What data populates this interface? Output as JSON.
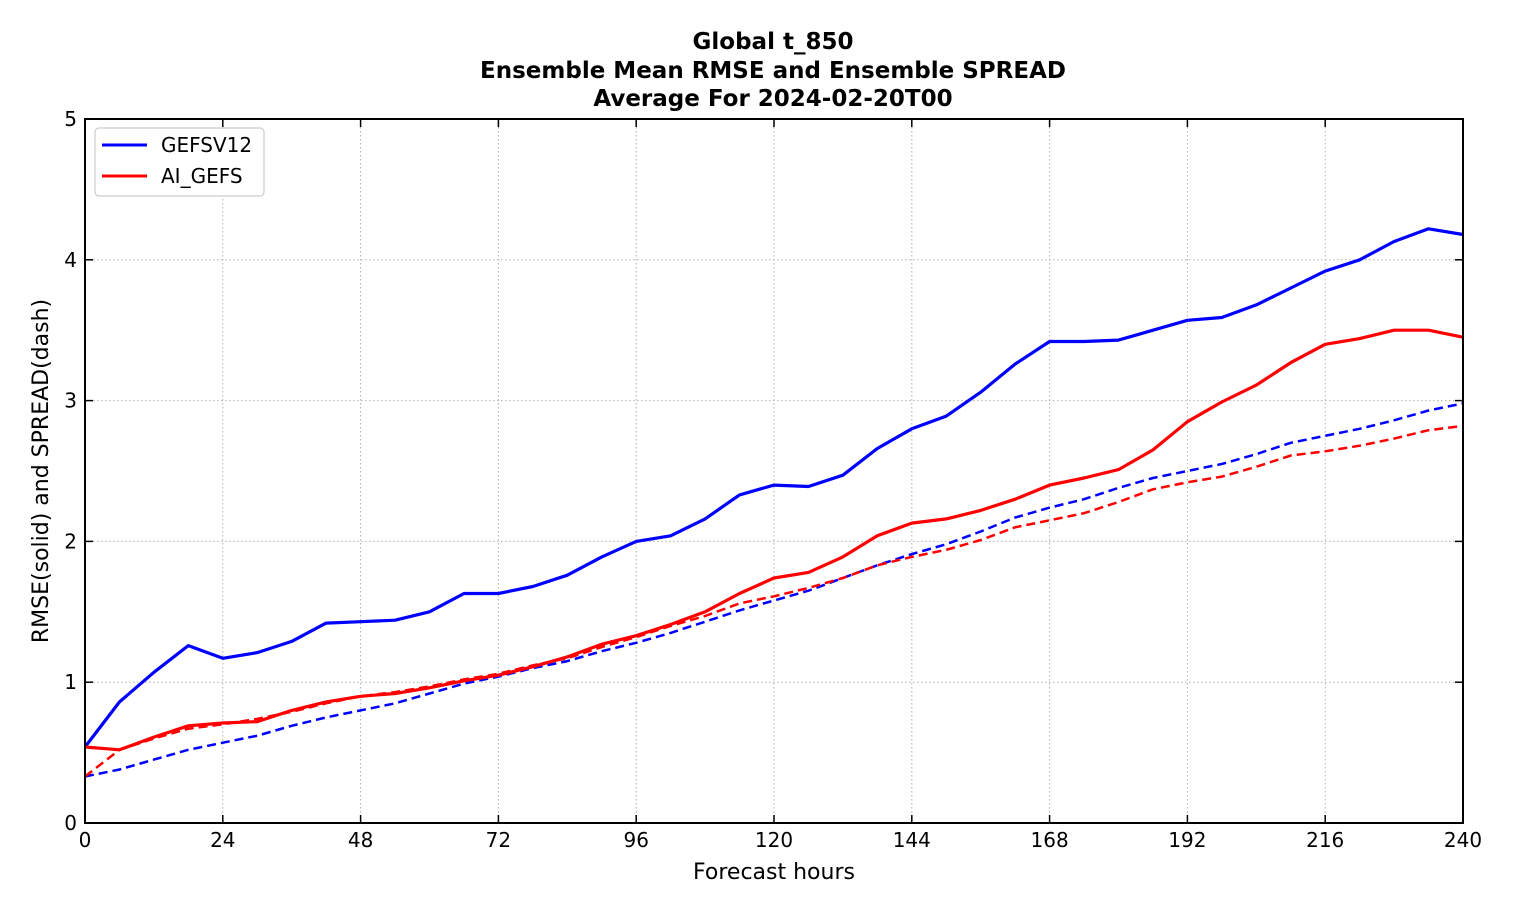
{
  "chart_data": {
    "type": "line",
    "title_lines": [
      "Global t_850",
      "Ensemble Mean RMSE and Ensemble SPREAD",
      "Average For 2024-02-20T00"
    ],
    "xlabel": "Forecast hours",
    "ylabel": "RMSE(solid) and SPREAD(dash)",
    "xlim": [
      0,
      240
    ],
    "ylim": [
      0,
      5
    ],
    "xticks": [
      0,
      24,
      48,
      72,
      96,
      120,
      144,
      168,
      192,
      216,
      240
    ],
    "yticks": [
      0,
      1,
      2,
      3,
      4,
      5
    ],
    "grid": true,
    "legend_position": "top-left",
    "x": [
      0,
      6,
      12,
      18,
      24,
      30,
      36,
      42,
      48,
      54,
      60,
      66,
      72,
      78,
      84,
      90,
      96,
      102,
      108,
      114,
      120,
      126,
      132,
      138,
      144,
      150,
      156,
      162,
      168,
      174,
      180,
      186,
      192,
      198,
      204,
      210,
      216,
      222,
      228,
      234,
      240
    ],
    "series": [
      {
        "name": "GEFSV12",
        "color": "#0000ff",
        "rmse": [
          0.54,
          0.86,
          1.07,
          1.26,
          1.17,
          1.21,
          1.29,
          1.42,
          1.43,
          1.44,
          1.5,
          1.63,
          1.63,
          1.68,
          1.76,
          1.89,
          2.0,
          2.04,
          2.16,
          2.33,
          2.4,
          2.39,
          2.47,
          2.66,
          2.8,
          2.89,
          3.06,
          3.26,
          3.42,
          3.42,
          3.43,
          3.5,
          3.57,
          3.59,
          3.68,
          3.8,
          3.92,
          4.0,
          4.13,
          4.22,
          4.18
        ],
        "spread": [
          0.33,
          0.38,
          0.45,
          0.52,
          0.57,
          0.62,
          0.69,
          0.75,
          0.8,
          0.85,
          0.92,
          0.99,
          1.04,
          1.1,
          1.15,
          1.22,
          1.28,
          1.35,
          1.43,
          1.51,
          1.58,
          1.65,
          1.74,
          1.83,
          1.91,
          1.98,
          2.07,
          2.17,
          2.24,
          2.3,
          2.38,
          2.45,
          2.5,
          2.55,
          2.62,
          2.7,
          2.75,
          2.8,
          2.86,
          2.93,
          2.98
        ]
      },
      {
        "name": "AI_GEFS",
        "color": "#ff0000",
        "rmse": [
          0.54,
          0.52,
          0.61,
          0.69,
          0.71,
          0.72,
          0.8,
          0.86,
          0.9,
          0.92,
          0.96,
          1.01,
          1.05,
          1.11,
          1.18,
          1.27,
          1.33,
          1.41,
          1.5,
          1.63,
          1.74,
          1.78,
          1.89,
          2.04,
          2.13,
          2.16,
          2.22,
          2.3,
          2.4,
          2.45,
          2.51,
          2.65,
          2.85,
          2.99,
          3.11,
          3.27,
          3.4,
          3.44,
          3.5,
          3.5,
          3.45
        ],
        "spread": [
          0.33,
          0.52,
          0.6,
          0.67,
          0.7,
          0.74,
          0.79,
          0.85,
          0.9,
          0.93,
          0.97,
          1.02,
          1.06,
          1.12,
          1.17,
          1.25,
          1.32,
          1.4,
          1.47,
          1.56,
          1.61,
          1.67,
          1.74,
          1.83,
          1.89,
          1.94,
          2.01,
          2.1,
          2.15,
          2.2,
          2.28,
          2.37,
          2.42,
          2.46,
          2.53,
          2.61,
          2.64,
          2.68,
          2.73,
          2.79,
          2.82
        ]
      }
    ]
  }
}
